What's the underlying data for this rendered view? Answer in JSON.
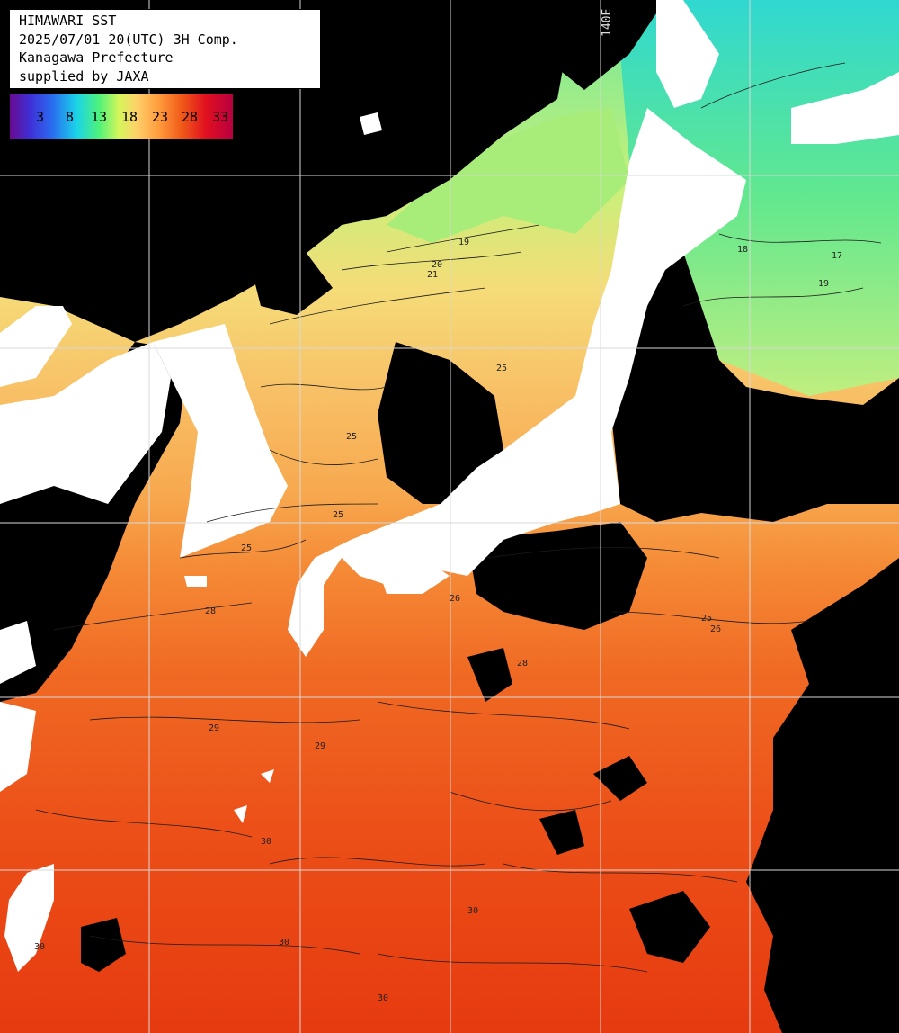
{
  "title": {
    "line1": "HIMAWARI SST",
    "line2": "2025/07/01 20(UTC) 3H Comp.",
    "line3": "Kanagawa Prefecture",
    "line4": "supplied by JAXA"
  },
  "legend": {
    "ticks": [
      "3",
      "8",
      "13",
      "18",
      "23",
      "28",
      "33"
    ]
  },
  "meridian_label": "140E",
  "contour_labels": [
    "19",
    "20",
    "21",
    "17",
    "18",
    "19",
    "25",
    "25",
    "25",
    "25",
    "26",
    "28",
    "28",
    "25",
    "26",
    "29",
    "30",
    "30",
    "30",
    "30",
    "30",
    "29"
  ],
  "colors": {
    "land": "#ffffff",
    "cloud": "#000000",
    "grid": "#d8d8d8",
    "contour": "#1a1a1a"
  }
}
